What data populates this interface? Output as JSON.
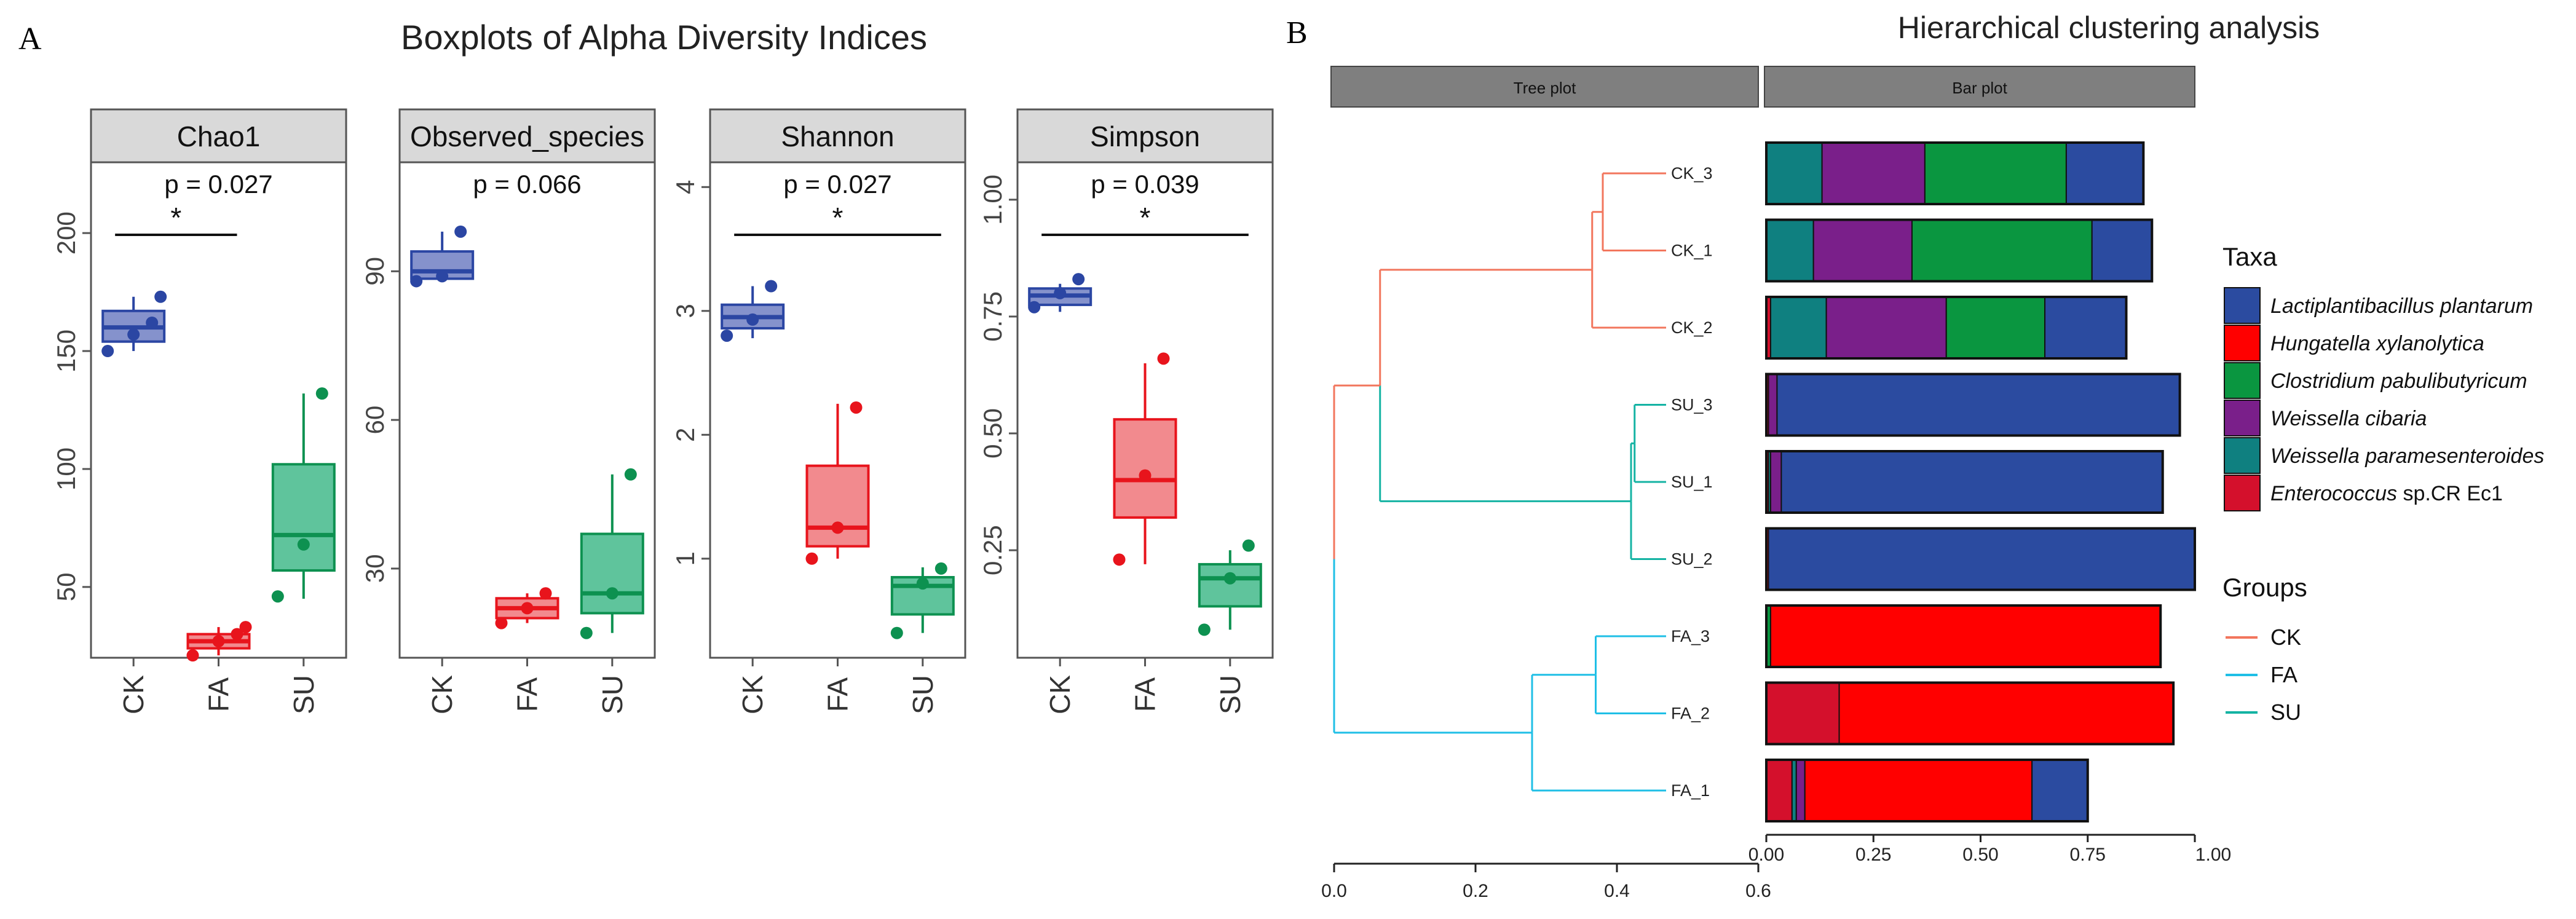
{
  "panel_labels": {
    "a": "A",
    "b": "B"
  },
  "colors": {
    "CK": "#2b46a3",
    "FA": "#e8141c",
    "SU": "#0d9150",
    "CK_fill": "#8592cc",
    "FA_fill": "#f28a8e",
    "SU_fill": "#5fc49c",
    "strip": "#d9d9d9",
    "bar_strip": "#7f7f7f",
    "tree_CK": "#f2765d",
    "tree_FA": "#1fbfe6",
    "tree_SU": "#14b3a3",
    "Lactiplantibacillus": "#2b4ba0",
    "Hungatella": "#ff0000",
    "Clostridium": "#0a9640",
    "Weissella_cibaria": "#7a1f8a",
    "Weissella_par": "#0f8080",
    "Enterococcus": "#d4102c"
  },
  "chart_data": [
    {
      "type": "box",
      "panel": "A",
      "suptitle": "Boxplots of Alpha Diversity Indices",
      "facets": [
        {
          "name": "Chao1",
          "pvalue": "p = 0.027",
          "sig": "*",
          "sig_groups": [
            "CK",
            "FA"
          ],
          "ylim": [
            20,
            230
          ],
          "yticks": [
            50,
            100,
            150,
            200
          ],
          "ytick_labels": [
            "50",
            "100",
            "150",
            "200"
          ],
          "categories": [
            "CK",
            "FA",
            "SU"
          ],
          "boxes": [
            {
              "group": "CK",
              "min": 150,
              "q1": 154,
              "median": 160,
              "q3": 167,
              "max": 173,
              "points": [
                150,
                157,
                162,
                173
              ]
            },
            {
              "group": "FA",
              "min": 21,
              "q1": 24,
              "median": 27,
              "q3": 30,
              "max": 33,
              "points": [
                21,
                27,
                30,
                33
              ]
            },
            {
              "group": "SU",
              "min": 45,
              "q1": 57,
              "median": 72,
              "q3": 102,
              "max": 132,
              "points": [
                46,
                68,
                132
              ]
            }
          ]
        },
        {
          "name": "Observed_species",
          "pvalue": "p = 0.066",
          "sig": "",
          "sig_groups": [],
          "ylim": [
            12,
            112
          ],
          "yticks": [
            30,
            60,
            90
          ],
          "ytick_labels": [
            "30",
            "60",
            "90"
          ],
          "categories": [
            "CK",
            "FA",
            "SU"
          ],
          "boxes": [
            {
              "group": "CK",
              "min": 88,
              "q1": 88.5,
              "median": 90,
              "q3": 94,
              "max": 98,
              "points": [
                88,
                89,
                98
              ]
            },
            {
              "group": "FA",
              "min": 19,
              "q1": 20,
              "median": 22,
              "q3": 24,
              "max": 25,
              "points": [
                19,
                22,
                25
              ]
            },
            {
              "group": "SU",
              "min": 17,
              "q1": 21,
              "median": 25,
              "q3": 37,
              "max": 49,
              "points": [
                17,
                25,
                49
              ]
            }
          ]
        },
        {
          "name": "Shannon",
          "pvalue": "p = 0.027",
          "sig": "*",
          "sig_groups": [
            "CK",
            "SU"
          ],
          "ylim": [
            0.2,
            4.2
          ],
          "yticks": [
            1,
            2,
            3,
            4
          ],
          "ytick_labels": [
            "1",
            "2",
            "3",
            "4"
          ],
          "categories": [
            "CK",
            "FA",
            "SU"
          ],
          "boxes": [
            {
              "group": "CK",
              "min": 2.78,
              "q1": 2.86,
              "median": 2.95,
              "q3": 3.05,
              "max": 3.2,
              "points": [
                2.8,
                2.93,
                3.2
              ]
            },
            {
              "group": "FA",
              "min": 1.0,
              "q1": 1.1,
              "median": 1.25,
              "q3": 1.75,
              "max": 2.25,
              "points": [
                1.0,
                1.25,
                2.22
              ]
            },
            {
              "group": "SU",
              "min": 0.4,
              "q1": 0.55,
              "median": 0.78,
              "q3": 0.85,
              "max": 0.93,
              "points": [
                0.4,
                0.8,
                0.92
              ]
            }
          ]
        },
        {
          "name": "Simpson",
          "pvalue": "p = 0.039",
          "sig": "*",
          "sig_groups": [
            "CK",
            "SU"
          ],
          "ylim": [
            0.02,
            1.08
          ],
          "yticks": [
            0.25,
            0.5,
            0.75,
            1.0
          ],
          "ytick_labels": [
            "0.25",
            "0.50",
            "0.75",
            "1.00"
          ],
          "categories": [
            "CK",
            "FA",
            "SU"
          ],
          "boxes": [
            {
              "group": "CK",
              "min": 0.76,
              "q1": 0.775,
              "median": 0.795,
              "q3": 0.81,
              "max": 0.82,
              "points": [
                0.77,
                0.8,
                0.83
              ]
            },
            {
              "group": "FA",
              "min": 0.22,
              "q1": 0.32,
              "median": 0.4,
              "q3": 0.53,
              "max": 0.65,
              "points": [
                0.23,
                0.41,
                0.66
              ]
            },
            {
              "group": "SU",
              "min": 0.08,
              "q1": 0.13,
              "median": 0.19,
              "q3": 0.22,
              "max": 0.25,
              "points": [
                0.08,
                0.19,
                0.26
              ]
            }
          ]
        }
      ]
    },
    {
      "type": "dendrogram+stacked_bar",
      "panel": "B",
      "title": "Hierarchical clustering analysis",
      "tree_strip": "Tree plot",
      "bar_strip": "Bar plot",
      "tree_xlim": [
        0,
        0.6
      ],
      "tree_xticks": [
        0,
        0.2,
        0.4,
        0.6
      ],
      "tree_xtick_labels": [
        "0.0",
        "0.2",
        "0.4",
        "0.6"
      ],
      "bar_xlim": [
        0,
        1
      ],
      "bar_xticks": [
        0,
        0.25,
        0.5,
        0.75,
        1.0
      ],
      "bar_xtick_labels": [
        "0.00",
        "0.25",
        "0.50",
        "0.75",
        "1.00"
      ],
      "samples": [
        "CK_3",
        "CK_1",
        "CK_2",
        "SU_3",
        "SU_1",
        "SU_2",
        "FA_3",
        "FA_2",
        "FA_1"
      ],
      "sample_groups": [
        "CK",
        "CK",
        "CK",
        "SU",
        "SU",
        "SU",
        "FA",
        "FA",
        "FA"
      ],
      "tree_nodes": [
        {
          "id": "n_ck31",
          "height": 0.38,
          "children": [
            "CK_3",
            "CK_1"
          ]
        },
        {
          "id": "n_ck",
          "height": 0.365,
          "children": [
            "n_ck31",
            "CK_2"
          ]
        },
        {
          "id": "n_su31",
          "height": 0.425,
          "children": [
            "SU_3",
            "SU_1"
          ]
        },
        {
          "id": "n_su",
          "height": 0.42,
          "children": [
            "n_su31",
            "SU_2"
          ]
        },
        {
          "id": "n_cksu",
          "height": 0.065,
          "children": [
            "n_ck",
            "n_su"
          ]
        },
        {
          "id": "n_fa32",
          "height": 0.37,
          "children": [
            "FA_3",
            "FA_2"
          ]
        },
        {
          "id": "n_fa",
          "height": 0.28,
          "children": [
            "n_fa32",
            "FA_1"
          ]
        },
        {
          "id": "n_root",
          "height": 0.0,
          "children": [
            "n_cksu",
            "n_fa"
          ]
        }
      ],
      "taxa_order": [
        "Enterococcus",
        "Weissella_par",
        "Weissella_cibaria",
        "Clostridium",
        "Hungatella",
        "Lactiplantibacillus"
      ],
      "bars": {
        "CK_3": [
          0,
          0.13,
          0.24,
          0.33,
          0,
          0.18
        ],
        "CK_1": [
          0,
          0.11,
          0.23,
          0.42,
          0,
          0.14
        ],
        "CK_2": [
          0.01,
          0.13,
          0.28,
          0.23,
          0,
          0.19
        ],
        "SU_3": [
          0.005,
          0,
          0.02,
          0,
          0,
          0.94
        ],
        "SU_1": [
          0.005,
          0.005,
          0.025,
          0,
          0,
          0.89
        ],
        "SU_2": [
          0.005,
          0,
          0,
          0,
          0,
          0.995
        ],
        "FA_3": [
          0,
          0,
          0,
          0.01,
          0.91,
          0
        ],
        "FA_2": [
          0.17,
          0,
          0,
          0,
          0.78,
          0
        ],
        "FA_1": [
          0.06,
          0.01,
          0.02,
          0,
          0.53,
          0.13
        ]
      },
      "legend_taxa_title": "Taxa",
      "legend_taxa": [
        {
          "key": "Lactiplantibacillus",
          "italic": "Lactiplantibacillus plantarum",
          "rest": ""
        },
        {
          "key": "Hungatella",
          "italic": "Hungatella xylanolytica",
          "rest": ""
        },
        {
          "key": "Clostridium",
          "italic": "Clostridium pabulibutyricum",
          "rest": ""
        },
        {
          "key": "Weissella_cibaria",
          "italic": "Weissella cibaria",
          "rest": ""
        },
        {
          "key": "Weissella_par",
          "italic": "Weissella paramesenteroides",
          "rest": ""
        },
        {
          "key": "Enterococcus",
          "italic": "Enterococcus",
          "rest": " sp.CR Ec1"
        }
      ],
      "legend_groups_title": "Groups",
      "legend_groups": [
        {
          "key": "tree_CK",
          "label": "CK"
        },
        {
          "key": "tree_FA",
          "label": "FA"
        },
        {
          "key": "tree_SU",
          "label": "SU"
        }
      ]
    }
  ]
}
